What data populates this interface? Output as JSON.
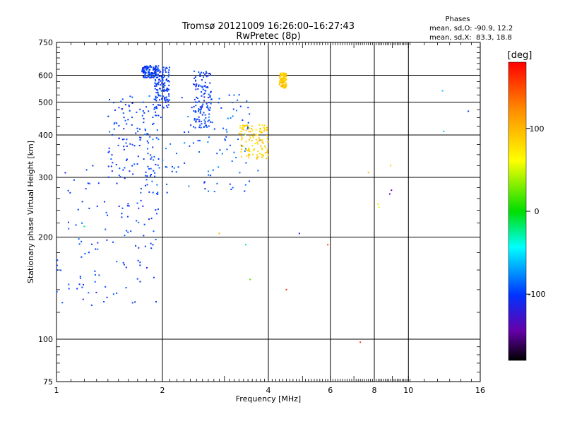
{
  "chart_data": {
    "type": "scatter",
    "title": "Tromsø 20121009 16:26:00–16:27:43",
    "subtitle": "RwPretec (8p)",
    "xlabel": "Frequency [MHz]",
    "ylabel": "Stationary phase Virtual Height [km]",
    "x_scale": "log",
    "y_scale": "log",
    "xlim": [
      1,
      16
    ],
    "ylim": [
      75,
      750
    ],
    "x_ticks": [
      "1",
      "2",
      "4",
      "6",
      "8",
      "10",
      "16"
    ],
    "x_tick_values": [
      1,
      2,
      4,
      6,
      8,
      10,
      16
    ],
    "y_ticks": [
      "75",
      "100",
      "200",
      "300",
      "400",
      "500",
      "600",
      "750"
    ],
    "y_tick_values": [
      75,
      100,
      200,
      300,
      400,
      500,
      600,
      750
    ],
    "grid": true,
    "phase_stats": {
      "heading": "Phases",
      "line_o": "mean, sd,O: -90.9, 12.2",
      "line_x": "mean, sd,X:  83.3, 18.8"
    },
    "colorbar": {
      "label": "[deg]",
      "ticks": [
        "100",
        "0",
        "-100"
      ],
      "tick_values": [
        100,
        0,
        -100
      ],
      "range": [
        -180,
        180
      ]
    },
    "echo_regions": [
      {
        "name": "E/F1 trace",
        "f": [
          1.0,
          1.95
        ],
        "h": [
          125,
          330
        ],
        "phase": -100
      },
      {
        "name": "F2 O-mode rising",
        "f": [
          1.4,
          1.95
        ],
        "h": [
          300,
          520
        ],
        "phase": -100
      },
      {
        "name": "F2 O-mode cusp",
        "f": [
          1.9,
          2.1
        ],
        "h": [
          480,
          640
        ],
        "phase": -100
      },
      {
        "name": "top patch",
        "f": [
          1.75,
          1.95
        ],
        "h": [
          590,
          640
        ],
        "phase": -100
      },
      {
        "name": "F2 trace (blue, upper)",
        "f": [
          2.45,
          2.75
        ],
        "h": [
          420,
          620
        ],
        "phase": -100
      },
      {
        "name": "oblique X-ish trace",
        "f": [
          1.8,
          3.8
        ],
        "h": [
          270,
          530
        ],
        "phase": -90
      },
      {
        "name": "X-mode trace",
        "f": [
          3.3,
          4.0
        ],
        "h": [
          340,
          430
        ],
        "phase": 85
      },
      {
        "name": "X-mode high",
        "f": [
          4.3,
          4.5
        ],
        "h": [
          550,
          610
        ],
        "phase": 90
      }
    ],
    "scattered_points": [
      {
        "f": 1.68,
        "h": 405,
        "phase": -100
      },
      {
        "f": 1.62,
        "h": 520,
        "phase": -95
      },
      {
        "f": 1.2,
        "h": 215,
        "phase": -20
      },
      {
        "f": 2.9,
        "h": 205,
        "phase": 100
      },
      {
        "f": 3.45,
        "h": 190,
        "phase": -20
      },
      {
        "f": 3.55,
        "h": 150,
        "phase": 20
      },
      {
        "f": 4.9,
        "h": 205,
        "phase": -130
      },
      {
        "f": 5.9,
        "h": 190,
        "phase": 150
      },
      {
        "f": 4.5,
        "h": 140,
        "phase": 160
      },
      {
        "f": 7.3,
        "h": 98,
        "phase": 160
      },
      {
        "f": 7.7,
        "h": 310,
        "phase": 100
      },
      {
        "f": 8.9,
        "h": 325,
        "phase": 90
      },
      {
        "f": 8.95,
        "h": 275,
        "phase": -140
      },
      {
        "f": 8.85,
        "h": 268,
        "phase": -140
      },
      {
        "f": 8.2,
        "h": 250,
        "phase": 70
      },
      {
        "f": 8.25,
        "h": 245,
        "phase": 55
      },
      {
        "f": 12.5,
        "h": 540,
        "phase": -60
      },
      {
        "f": 12.6,
        "h": 410,
        "phase": -60
      },
      {
        "f": 14.8,
        "h": 470,
        "phase": -100
      }
    ]
  }
}
